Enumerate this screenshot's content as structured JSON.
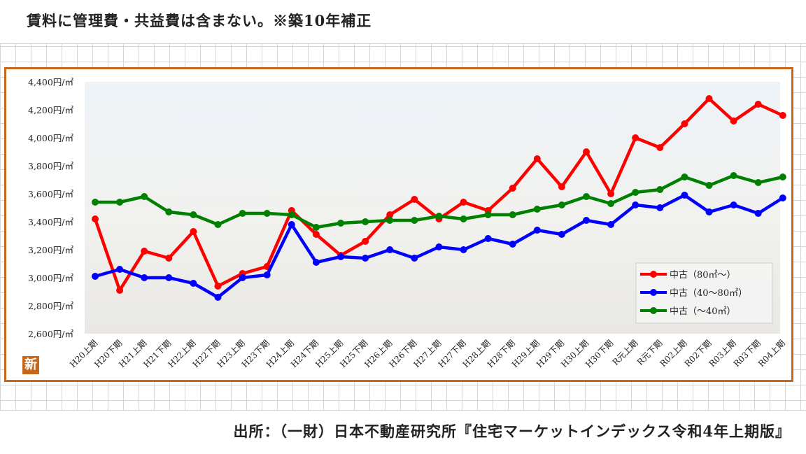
{
  "header": {
    "note": "賃料に管理費・共益費は含まない。※築10年補正"
  },
  "footer": {
    "source": "出所：（一財）日本不動産研究所『住宅マーケットインデックス令和4年上期版』"
  },
  "logo": {
    "text": "新"
  },
  "chart_data": {
    "type": "line",
    "title": "",
    "xlabel": "",
    "ylabel": "",
    "ylim": [
      2600,
      4400
    ],
    "yticks": [
      2600,
      2800,
      3000,
      3200,
      3400,
      3600,
      3800,
      4000,
      4200,
      4400
    ],
    "ytick_labels": [
      "2,600円/㎡",
      "2,800円/㎡",
      "3,000円/㎡",
      "3,200円/㎡",
      "3,400円/㎡",
      "3,600円/㎡",
      "3,800円/㎡",
      "4,000円/㎡",
      "4,200円/㎡",
      "4,400円/㎡"
    ],
    "grid": false,
    "legend_position": "bottom-right",
    "categories": [
      "H20上期",
      "H20下期",
      "H21上期",
      "H21下期",
      "H22上期",
      "H22下期",
      "H23上期",
      "H23下期",
      "H24上期",
      "H24下期",
      "H25上期",
      "H25下期",
      "H26上期",
      "H26下期",
      "H27上期",
      "H27下期",
      "H28上期",
      "H28下期",
      "H29上期",
      "H29下期",
      "H30上期",
      "H30下期",
      "R元上期",
      "R元下期",
      "R02上期",
      "R02下期",
      "R03上期",
      "R03下期",
      "R04上期"
    ],
    "series": [
      {
        "name": "中古（80㎡～）",
        "color": "#ff0000",
        "values": [
          3420,
          2910,
          3190,
          3140,
          3330,
          2940,
          3030,
          3080,
          3480,
          3310,
          3160,
          3260,
          3450,
          3560,
          3420,
          3540,
          3480,
          3640,
          3850,
          3650,
          3900,
          3600,
          4000,
          3930,
          4100,
          4280,
          4120,
          4240,
          4160
        ]
      },
      {
        "name": "中古（40～80㎡）",
        "color": "#0000ff",
        "values": [
          3010,
          3060,
          3000,
          3000,
          2960,
          2860,
          3000,
          3020,
          3380,
          3110,
          3150,
          3140,
          3200,
          3140,
          3220,
          3200,
          3280,
          3240,
          3340,
          3310,
          3410,
          3380,
          3520,
          3500,
          3590,
          3470,
          3520,
          3460,
          3570
        ]
      },
      {
        "name": "中古（～40㎡）",
        "color": "#008000",
        "values": [
          3540,
          3540,
          3580,
          3470,
          3450,
          3380,
          3460,
          3460,
          3450,
          3360,
          3390,
          3400,
          3410,
          3410,
          3440,
          3420,
          3450,
          3450,
          3490,
          3520,
          3580,
          3530,
          3610,
          3630,
          3720,
          3660,
          3730,
          3680,
          3720
        ]
      }
    ]
  }
}
